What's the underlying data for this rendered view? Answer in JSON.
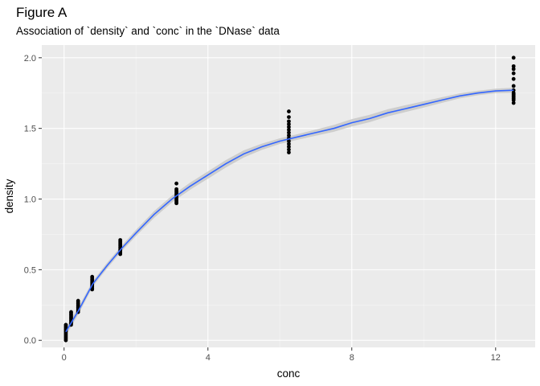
{
  "chart_data": {
    "type": "scatter",
    "title": "Figure A",
    "subtitle": "Association of `density` and `conc` in the `DNase` data",
    "xlabel": "conc",
    "ylabel": "density",
    "xlim": [
      -0.62,
      13.1
    ],
    "ylim": [
      -0.05,
      2.09
    ],
    "x_ticks": [
      0,
      4,
      8,
      12
    ],
    "x_tick_labels": [
      "0",
      "4",
      "8",
      "12"
    ],
    "y_ticks": [
      0.0,
      0.5,
      1.0,
      1.5,
      2.0
    ],
    "y_tick_labels": [
      "0.0",
      "0.5",
      "1.0",
      "1.5",
      "2.0"
    ],
    "grid": true,
    "background": "#ebebeb",
    "point_color": "#000000",
    "smooth_color": "#3366ff",
    "ribbon_color": "#c8c8c8",
    "points": [
      {
        "x": 0.0488,
        "y": [
          0.0,
          0.01,
          0.02,
          0.03,
          0.04,
          0.05,
          0.06,
          0.07,
          0.08,
          0.09,
          0.1,
          0.11
        ]
      },
      {
        "x": 0.1953,
        "y": [
          0.11,
          0.12,
          0.13,
          0.14,
          0.15,
          0.16,
          0.17,
          0.18,
          0.19,
          0.2
        ]
      },
      {
        "x": 0.3906,
        "y": [
          0.2,
          0.21,
          0.22,
          0.23,
          0.24,
          0.25,
          0.26,
          0.27,
          0.28
        ]
      },
      {
        "x": 0.7813,
        "y": [
          0.36,
          0.37,
          0.38,
          0.39,
          0.4,
          0.41,
          0.42,
          0.43,
          0.44,
          0.45
        ]
      },
      {
        "x": 1.5625,
        "y": [
          0.61,
          0.62,
          0.63,
          0.64,
          0.65,
          0.66,
          0.67,
          0.68,
          0.69,
          0.7,
          0.71
        ]
      },
      {
        "x": 3.125,
        "y": [
          0.97,
          0.98,
          0.99,
          1.0,
          1.01,
          1.02,
          1.03,
          1.04,
          1.05,
          1.06,
          1.07,
          1.11
        ]
      },
      {
        "x": 6.25,
        "y": [
          1.33,
          1.35,
          1.37,
          1.39,
          1.41,
          1.43,
          1.45,
          1.47,
          1.49,
          1.51,
          1.53,
          1.55,
          1.58,
          1.62
        ]
      },
      {
        "x": 12.5,
        "y": [
          1.68,
          1.7,
          1.71,
          1.72,
          1.73,
          1.74,
          1.75,
          1.77,
          1.8,
          1.85,
          1.89,
          1.92,
          1.94,
          2.0
        ]
      }
    ],
    "smooth": [
      {
        "x": 0.0488,
        "y": 0.06,
        "se": 0.03
      },
      {
        "x": 0.4,
        "y": 0.21,
        "se": 0.025
      },
      {
        "x": 0.8,
        "y": 0.4,
        "se": 0.02
      },
      {
        "x": 1.2,
        "y": 0.53,
        "se": 0.02
      },
      {
        "x": 1.6,
        "y": 0.65,
        "se": 0.02
      },
      {
        "x": 2.0,
        "y": 0.76,
        "se": 0.022
      },
      {
        "x": 2.5,
        "y": 0.89,
        "se": 0.024
      },
      {
        "x": 3.0,
        "y": 1.0,
        "se": 0.024
      },
      {
        "x": 3.5,
        "y": 1.09,
        "se": 0.025
      },
      {
        "x": 4.0,
        "y": 1.17,
        "se": 0.026
      },
      {
        "x": 4.5,
        "y": 1.25,
        "se": 0.026
      },
      {
        "x": 5.0,
        "y": 1.32,
        "se": 0.025
      },
      {
        "x": 5.5,
        "y": 1.37,
        "se": 0.022
      },
      {
        "x": 6.0,
        "y": 1.41,
        "se": 0.02
      },
      {
        "x": 6.5,
        "y": 1.44,
        "se": 0.02
      },
      {
        "x": 7.0,
        "y": 1.47,
        "se": 0.022
      },
      {
        "x": 7.5,
        "y": 1.5,
        "se": 0.024
      },
      {
        "x": 8.0,
        "y": 1.54,
        "se": 0.026
      },
      {
        "x": 8.5,
        "y": 1.57,
        "se": 0.026
      },
      {
        "x": 9.0,
        "y": 1.61,
        "se": 0.025
      },
      {
        "x": 9.5,
        "y": 1.64,
        "se": 0.024
      },
      {
        "x": 10.0,
        "y": 1.67,
        "se": 0.022
      },
      {
        "x": 10.5,
        "y": 1.7,
        "se": 0.02
      },
      {
        "x": 11.0,
        "y": 1.73,
        "se": 0.018
      },
      {
        "x": 11.5,
        "y": 1.75,
        "se": 0.016
      },
      {
        "x": 12.0,
        "y": 1.765,
        "se": 0.016
      },
      {
        "x": 12.5,
        "y": 1.77,
        "se": 0.018
      }
    ]
  }
}
